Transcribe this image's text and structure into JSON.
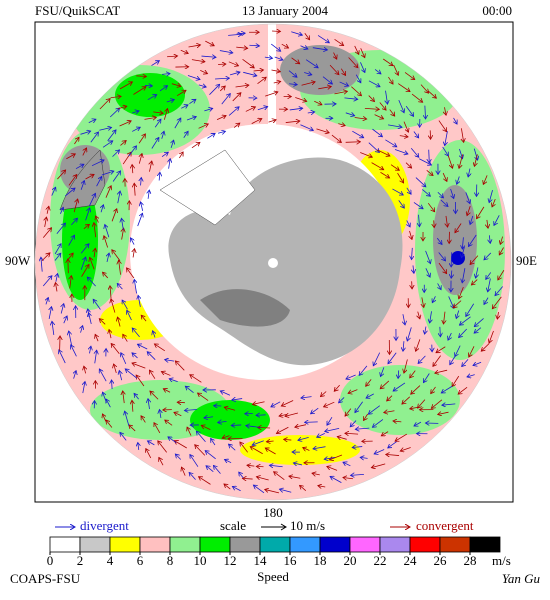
{
  "header": {
    "source": "FSU/QuikSCAT",
    "date": "13 January 2004",
    "time": "00:00"
  },
  "map": {
    "left_label": "90W",
    "right_label": "90E",
    "bottom_label": "180"
  },
  "legend": {
    "divergent": "divergent",
    "scale": "scale",
    "scale_value": "10 m/s",
    "convergent": "convergent"
  },
  "colorbar": {
    "ticks": [
      0,
      2,
      4,
      6,
      8,
      10,
      12,
      14,
      16,
      18,
      20,
      22,
      24,
      26,
      28
    ],
    "unit": "m/s",
    "label": "Speed",
    "colors": [
      "#ffffff",
      "#c8c8c8",
      "#ffff00",
      "#ffc0c0",
      "#90f090",
      "#00ee00",
      "#999999",
      "#00aaaa",
      "#3399ff",
      "#0000cc",
      "#ff66ff",
      "#aa88ee",
      "#ff0000",
      "#cc3300",
      "#000000"
    ]
  },
  "credits": {
    "left": "COAPS-FSU",
    "right": "Yan Gu"
  }
}
